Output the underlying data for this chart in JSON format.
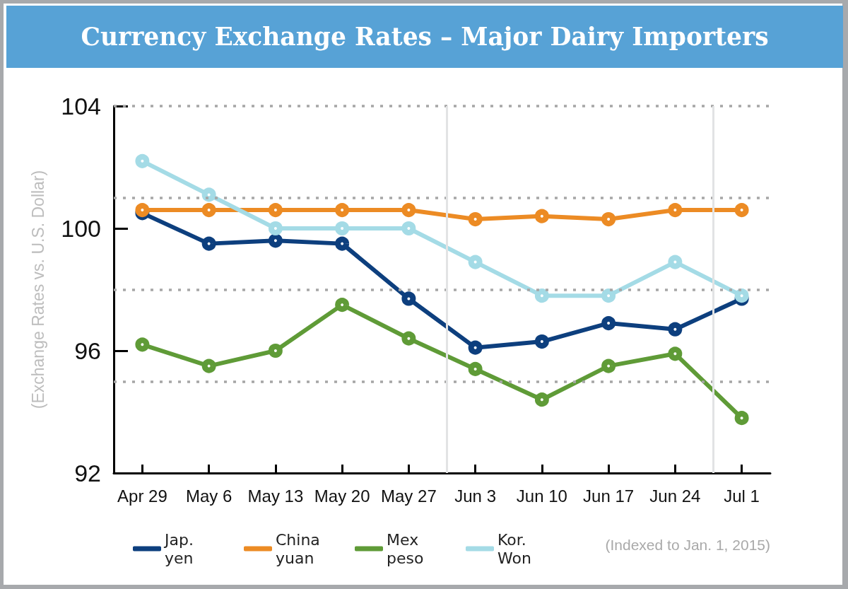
{
  "chart_data": {
    "type": "line",
    "title": "Currency Exchange Rates – Major Dairy Importers",
    "ylabel": "(Exchange Rates vs. U.S. Dollar)",
    "annotations": [
      "(Indexed to Jan. 1, 2015)"
    ],
    "x": [
      "--04-29",
      "--05-06",
      "--05-13",
      "--05-20",
      "--05-27",
      "--06-03",
      "--06-10",
      "--06-17",
      "--06-24",
      "--07-01"
    ],
    "xlim": [
      "--04-26",
      "--07-04"
    ],
    "xticks": [
      {
        "value": "--04-29",
        "label": "Apr 29"
      },
      {
        "value": "--05-06",
        "label": "May 6"
      },
      {
        "value": "--05-13",
        "label": "May 13"
      },
      {
        "value": "--05-20",
        "label": "May 20"
      },
      {
        "value": "--05-27",
        "label": "May 27"
      },
      {
        "value": "--06-03",
        "label": "Jun 3"
      },
      {
        "value": "--06-10",
        "label": "Jun 10"
      },
      {
        "value": "--06-17",
        "label": "Jun 17"
      },
      {
        "value": "--06-24",
        "label": "Jun 24"
      },
      {
        "value": "--07-01",
        "label": "Jul 1"
      }
    ],
    "ylim": [
      92,
      104
    ],
    "yticks": [
      92,
      96,
      100,
      104
    ],
    "series": [
      {
        "name": "Jap. yen",
        "color": "#0d3f7e",
        "values": [
          100.5,
          99.5,
          99.6,
          99.5,
          97.7,
          96.1,
          96.3,
          96.9,
          96.7,
          97.7
        ]
      },
      {
        "name": "China yuan",
        "color": "#ec8b24",
        "values": [
          100.6,
          100.6,
          100.6,
          100.6,
          100.6,
          100.3,
          100.4,
          100.3,
          100.6,
          100.6
        ]
      },
      {
        "name": "Mex peso",
        "color": "#5f9b37",
        "values": [
          96.2,
          95.5,
          96.0,
          97.5,
          96.4,
          95.4,
          94.4,
          95.5,
          95.9,
          93.8
        ]
      },
      {
        "name": "Kor. Won",
        "color": "#a4dbe6",
        "values": [
          102.2,
          101.1,
          100.0,
          100.0,
          100.0,
          98.9,
          97.8,
          97.8,
          98.9,
          97.8
        ]
      }
    ],
    "ref_lines": [
      {
        "axis": "y",
        "value": 95,
        "color": "#a6a6a6",
        "line_style": "dotted"
      },
      {
        "axis": "y",
        "value": 98,
        "color": "#a6a6a6",
        "line_style": "dotted"
      },
      {
        "axis": "y",
        "value": 101,
        "color": "#a6a6a6",
        "line_style": "dotted"
      },
      {
        "axis": "y",
        "value": 104,
        "color": "#a6a6a6",
        "line_style": "dotted"
      },
      {
        "axis": "x",
        "value": "--05-31",
        "color": "#e2e3e4",
        "line_style": "solid"
      },
      {
        "axis": "x",
        "value": "--06-28",
        "color": "#e2e3e4",
        "line_style": "solid"
      }
    ],
    "grid": false,
    "legend": "bottom",
    "marker": "circle",
    "line_style": "solid"
  }
}
